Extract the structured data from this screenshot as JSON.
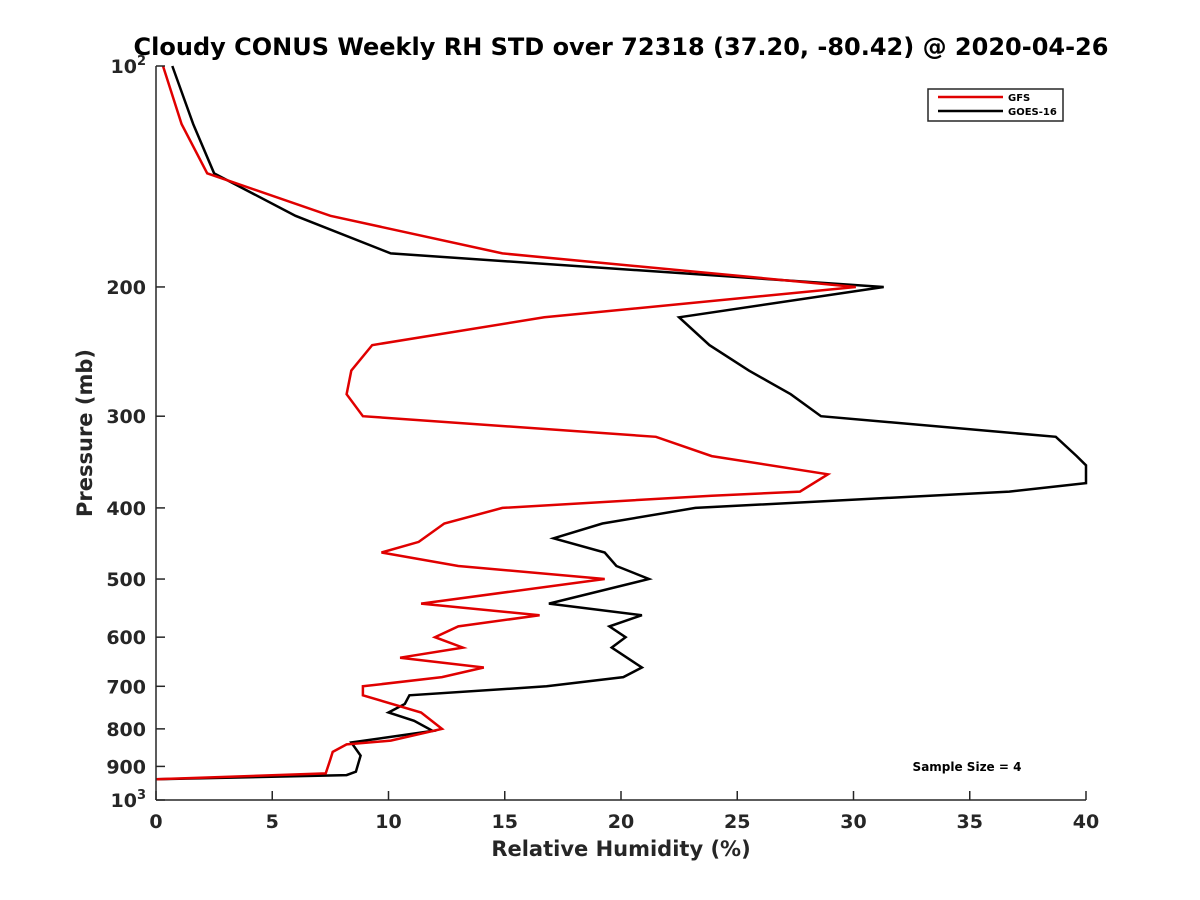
{
  "chart_data": {
    "type": "line",
    "title": "Cloudy CONUS Weekly RH STD over 72318 (37.20, -80.42) @ 2020-04-26",
    "xlabel": "Relative Humidity (%)",
    "ylabel": "Pressure (mb)",
    "xlim": [
      0,
      40
    ],
    "ylim": [
      100,
      1000
    ],
    "yscale": "log",
    "y_reversed": true,
    "grid": false,
    "x_ticks": [
      {
        "value": 0,
        "label": "0"
      },
      {
        "value": 5,
        "label": "5"
      },
      {
        "value": 10,
        "label": "10"
      },
      {
        "value": 15,
        "label": "15"
      },
      {
        "value": 20,
        "label": "20"
      },
      {
        "value": 25,
        "label": "25"
      },
      {
        "value": 30,
        "label": "30"
      },
      {
        "value": 35,
        "label": "35"
      },
      {
        "value": 40,
        "label": "40"
      }
    ],
    "y_ticks": [
      {
        "value": 100,
        "base": "10",
        "exp": "2"
      },
      {
        "value": 200,
        "label": "200"
      },
      {
        "value": 300,
        "label": "300"
      },
      {
        "value": 400,
        "label": "400"
      },
      {
        "value": 500,
        "label": "500"
      },
      {
        "value": 600,
        "label": "600"
      },
      {
        "value": 700,
        "label": "700"
      },
      {
        "value": 800,
        "label": "800"
      },
      {
        "value": 900,
        "label": "900"
      },
      {
        "value": 1000,
        "base": "10",
        "exp": "3"
      }
    ],
    "legend": {
      "placement": "top-right"
    },
    "annotations": [
      {
        "text": "Sample Size = 4",
        "placement": "bottom-right"
      }
    ],
    "series": [
      {
        "name": "GFS",
        "color": "#e00000",
        "points": [
          [
            0.3,
            100
          ],
          [
            1.1,
            120
          ],
          [
            2.2,
            140
          ],
          [
            7.5,
            160
          ],
          [
            14.9,
            180
          ],
          [
            30.1,
            200
          ],
          [
            16.7,
            220
          ],
          [
            9.3,
            240
          ],
          [
            8.4,
            260
          ],
          [
            8.2,
            280
          ],
          [
            8.9,
            300
          ],
          [
            21.5,
            320
          ],
          [
            23.9,
            340
          ],
          [
            28.9,
            360
          ],
          [
            27.7,
            380
          ],
          [
            23.9,
            385
          ],
          [
            14.9,
            400
          ],
          [
            12.4,
            420
          ],
          [
            11.3,
            445
          ],
          [
            9.7,
            460
          ],
          [
            13.0,
            480
          ],
          [
            19.3,
            500
          ],
          [
            11.4,
            540
          ],
          [
            16.5,
            560
          ],
          [
            13.0,
            580
          ],
          [
            12.0,
            600
          ],
          [
            13.2,
            620
          ],
          [
            10.5,
            640
          ],
          [
            14.1,
            660
          ],
          [
            12.3,
            680
          ],
          [
            8.9,
            700
          ],
          [
            8.9,
            720
          ],
          [
            11.4,
            760
          ],
          [
            12.3,
            800
          ],
          [
            10.1,
            830
          ],
          [
            8.2,
            840
          ],
          [
            7.6,
            860
          ],
          [
            7.5,
            880
          ],
          [
            7.3,
            920
          ],
          [
            0,
            937
          ]
        ]
      },
      {
        "name": "GOES-16",
        "color": "#000000",
        "points": [
          [
            0.7,
            100
          ],
          [
            1.6,
            120
          ],
          [
            2.5,
            140
          ],
          [
            6.0,
            160
          ],
          [
            10.1,
            180
          ],
          [
            31.3,
            200
          ],
          [
            22.5,
            220
          ],
          [
            23.8,
            240
          ],
          [
            25.5,
            260
          ],
          [
            27.3,
            280
          ],
          [
            28.6,
            300
          ],
          [
            38.7,
            320
          ],
          [
            39.6,
            340
          ],
          [
            40.0,
            350
          ],
          [
            40.0,
            370
          ],
          [
            36.7,
            380
          ],
          [
            23.2,
            400
          ],
          [
            19.2,
            420
          ],
          [
            17.1,
            440
          ],
          [
            19.3,
            460
          ],
          [
            19.8,
            480
          ],
          [
            21.2,
            500
          ],
          [
            16.9,
            540
          ],
          [
            20.9,
            560
          ],
          [
            19.5,
            580
          ],
          [
            20.2,
            600
          ],
          [
            19.6,
            620
          ],
          [
            20.9,
            660
          ],
          [
            20.1,
            680
          ],
          [
            16.8,
            700
          ],
          [
            10.9,
            720
          ],
          [
            10.7,
            740
          ],
          [
            10.0,
            760
          ],
          [
            11.1,
            780
          ],
          [
            11.9,
            805
          ],
          [
            8.4,
            835
          ],
          [
            8.8,
            870
          ],
          [
            8.6,
            915
          ],
          [
            8.2,
            925
          ],
          [
            0,
            937
          ]
        ]
      }
    ]
  }
}
